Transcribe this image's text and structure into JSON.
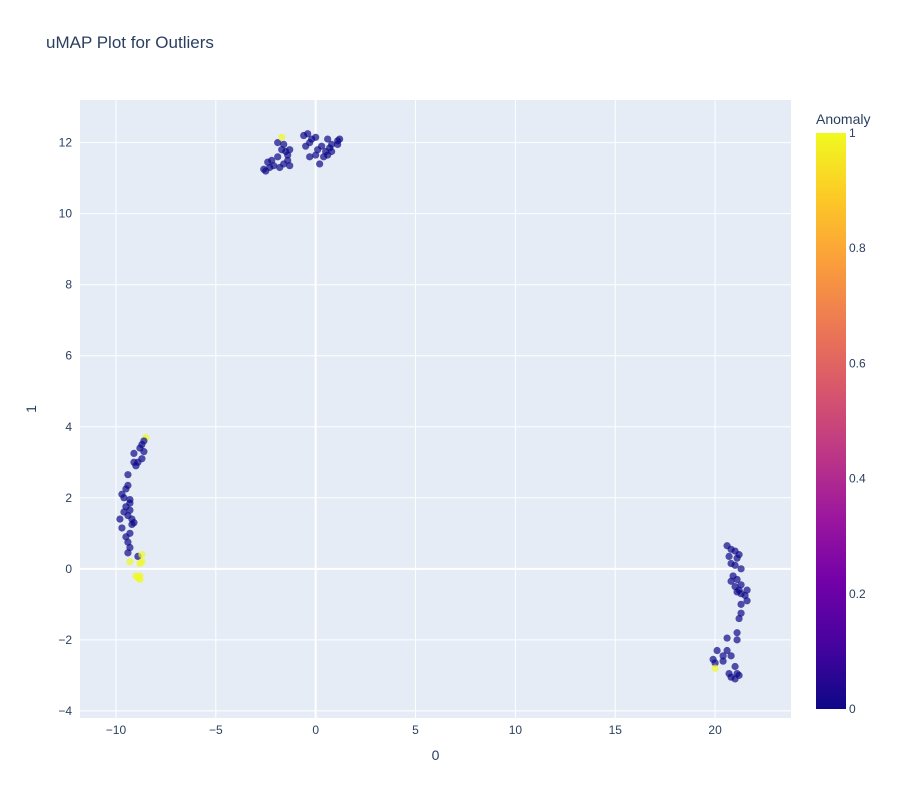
{
  "title": "uMAP Plot for Outliers",
  "colors": {
    "plot_bg": "#e5ecf6",
    "grid": "#ffffff",
    "text": "#2a3f5f",
    "marker_opacity": 0.7
  },
  "chart_data": {
    "type": "scatter",
    "title": "uMAP Plot for Outliers",
    "xlabel": "0",
    "ylabel": "1",
    "xlim": [
      -11.8,
      23.8
    ],
    "ylim": [
      -4.2,
      13.2
    ],
    "x_ticks": [
      -10,
      -5,
      0,
      5,
      10,
      15,
      20
    ],
    "y_ticks": [
      -4,
      -2,
      0,
      2,
      4,
      6,
      8,
      10,
      12
    ],
    "grid": true,
    "colorbar": {
      "title": "Anomaly",
      "range": [
        0,
        1
      ],
      "ticks": [
        0,
        0.2,
        0.4,
        0.6,
        0.8,
        1
      ],
      "colorscale": "plasma"
    },
    "points": [
      {
        "x": -2.5,
        "y": 11.2,
        "c": 0
      },
      {
        "x": -2.6,
        "y": 11.25,
        "c": 0
      },
      {
        "x": -2.3,
        "y": 11.3,
        "c": 0
      },
      {
        "x": -2.4,
        "y": 11.45,
        "c": 0
      },
      {
        "x": -2.1,
        "y": 11.35,
        "c": 0
      },
      {
        "x": -2.2,
        "y": 11.5,
        "c": 0
      },
      {
        "x": -1.9,
        "y": 11.6,
        "c": 0
      },
      {
        "x": -1.8,
        "y": 11.3,
        "c": 0
      },
      {
        "x": -1.6,
        "y": 11.4,
        "c": 0
      },
      {
        "x": -1.4,
        "y": 11.5,
        "c": 0
      },
      {
        "x": -1.3,
        "y": 11.35,
        "c": 0
      },
      {
        "x": -1.4,
        "y": 11.65,
        "c": 0
      },
      {
        "x": -1.7,
        "y": 11.8,
        "c": 0
      },
      {
        "x": -1.9,
        "y": 12.0,
        "c": 0
      },
      {
        "x": -1.6,
        "y": 11.95,
        "c": 0
      },
      {
        "x": -1.5,
        "y": 11.75,
        "c": 0
      },
      {
        "x": -1.3,
        "y": 11.8,
        "c": 0
      },
      {
        "x": -1.7,
        "y": 12.15,
        "c": 1
      },
      {
        "x": -0.6,
        "y": 12.2,
        "c": 0
      },
      {
        "x": -0.4,
        "y": 12.25,
        "c": 0
      },
      {
        "x": -0.2,
        "y": 12.1,
        "c": 0
      },
      {
        "x": 0.0,
        "y": 12.15,
        "c": 0
      },
      {
        "x": -0.5,
        "y": 11.9,
        "c": 0
      },
      {
        "x": -0.3,
        "y": 12.0,
        "c": 0
      },
      {
        "x": 0.1,
        "y": 11.8,
        "c": 0
      },
      {
        "x": 0.3,
        "y": 11.9,
        "c": 0
      },
      {
        "x": 0.5,
        "y": 11.75,
        "c": 0
      },
      {
        "x": 0.7,
        "y": 11.85,
        "c": 0
      },
      {
        "x": 0.6,
        "y": 12.1,
        "c": 0
      },
      {
        "x": 0.8,
        "y": 11.95,
        "c": 0
      },
      {
        "x": 0.4,
        "y": 11.6,
        "c": 0
      },
      {
        "x": 0.2,
        "y": 11.4,
        "c": 0
      },
      {
        "x": 0.6,
        "y": 11.65,
        "c": 0
      },
      {
        "x": 0.0,
        "y": 11.65,
        "c": 0
      },
      {
        "x": -0.3,
        "y": 11.6,
        "c": 0
      },
      {
        "x": 1.1,
        "y": 12.05,
        "c": 0
      },
      {
        "x": 1.2,
        "y": 12.1,
        "c": 0
      },
      {
        "x": 1.1,
        "y": 11.95,
        "c": 0
      },
      {
        "x": 0.8,
        "y": 11.75,
        "c": 0
      },
      {
        "x": -8.5,
        "y": 3.7,
        "c": 1
      },
      {
        "x": -8.6,
        "y": 3.6,
        "c": 0
      },
      {
        "x": -8.7,
        "y": 3.5,
        "c": 0
      },
      {
        "x": -8.6,
        "y": 3.3,
        "c": 0
      },
      {
        "x": -8.7,
        "y": 3.1,
        "c": 0
      },
      {
        "x": -8.9,
        "y": 3.0,
        "c": 0
      },
      {
        "x": -9.0,
        "y": 2.9,
        "c": 0
      },
      {
        "x": -9.1,
        "y": 3.25,
        "c": 0
      },
      {
        "x": -9.1,
        "y": 3.0,
        "c": 0
      },
      {
        "x": -8.8,
        "y": 3.4,
        "c": 0
      },
      {
        "x": -9.4,
        "y": 2.65,
        "c": 0
      },
      {
        "x": -9.4,
        "y": 2.35,
        "c": 0
      },
      {
        "x": -9.5,
        "y": 2.25,
        "c": 0
      },
      {
        "x": -9.7,
        "y": 2.1,
        "c": 0
      },
      {
        "x": -9.6,
        "y": 2.0,
        "c": 0
      },
      {
        "x": -9.3,
        "y": 1.95,
        "c": 0
      },
      {
        "x": -9.3,
        "y": 1.85,
        "c": 0
      },
      {
        "x": -9.5,
        "y": 1.75,
        "c": 0
      },
      {
        "x": -9.6,
        "y": 1.6,
        "c": 0
      },
      {
        "x": -9.3,
        "y": 1.65,
        "c": 0
      },
      {
        "x": -9.4,
        "y": 1.5,
        "c": 0
      },
      {
        "x": -9.2,
        "y": 1.4,
        "c": 0
      },
      {
        "x": -9.2,
        "y": 1.25,
        "c": 0
      },
      {
        "x": -9.1,
        "y": 1.3,
        "c": 0
      },
      {
        "x": -9.8,
        "y": 1.4,
        "c": 0
      },
      {
        "x": -9.7,
        "y": 1.15,
        "c": 0
      },
      {
        "x": -9.3,
        "y": 1.0,
        "c": 0
      },
      {
        "x": -9.5,
        "y": 0.9,
        "c": 0
      },
      {
        "x": -9.4,
        "y": 0.75,
        "c": 0
      },
      {
        "x": -9.3,
        "y": 0.6,
        "c": 0
      },
      {
        "x": -9.4,
        "y": 0.45,
        "c": 0
      },
      {
        "x": -8.9,
        "y": 0.35,
        "c": 0
      },
      {
        "x": -9.3,
        "y": 0.2,
        "c": 1
      },
      {
        "x": -8.7,
        "y": 0.4,
        "c": 1
      },
      {
        "x": -8.7,
        "y": 0.2,
        "c": 1
      },
      {
        "x": -8.8,
        "y": 0.15,
        "c": 1
      },
      {
        "x": -9.0,
        "y": -0.2,
        "c": 1
      },
      {
        "x": -8.9,
        "y": -0.25,
        "c": 1
      },
      {
        "x": -8.8,
        "y": -0.2,
        "c": 1
      },
      {
        "x": -8.8,
        "y": -0.3,
        "c": 1
      },
      {
        "x": 20.6,
        "y": 0.65,
        "c": 0
      },
      {
        "x": 20.8,
        "y": 0.55,
        "c": 0
      },
      {
        "x": 21.0,
        "y": 0.5,
        "c": 0
      },
      {
        "x": 21.2,
        "y": 0.4,
        "c": 0
      },
      {
        "x": 20.7,
        "y": 0.35,
        "c": 0
      },
      {
        "x": 21.1,
        "y": 0.3,
        "c": 0
      },
      {
        "x": 20.8,
        "y": 0.15,
        "c": 0
      },
      {
        "x": 21.0,
        "y": 0.1,
        "c": 0
      },
      {
        "x": 21.3,
        "y": 0.0,
        "c": 0
      },
      {
        "x": 20.9,
        "y": -0.2,
        "c": 0
      },
      {
        "x": 21.1,
        "y": -0.3,
        "c": 0
      },
      {
        "x": 20.8,
        "y": -0.35,
        "c": 0
      },
      {
        "x": 21.3,
        "y": -0.45,
        "c": 0
      },
      {
        "x": 21.0,
        "y": -0.5,
        "c": 0
      },
      {
        "x": 21.2,
        "y": -0.6,
        "c": 0
      },
      {
        "x": 21.6,
        "y": -0.6,
        "c": 0
      },
      {
        "x": 21.1,
        "y": -0.65,
        "c": 0
      },
      {
        "x": 21.3,
        "y": -0.7,
        "c": 0
      },
      {
        "x": 21.5,
        "y": -0.75,
        "c": 0
      },
      {
        "x": 21.6,
        "y": -0.9,
        "c": 0
      },
      {
        "x": 21.3,
        "y": -1.0,
        "c": 0
      },
      {
        "x": 21.3,
        "y": -1.25,
        "c": 0
      },
      {
        "x": 21.2,
        "y": -1.4,
        "c": 0
      },
      {
        "x": 21.1,
        "y": -1.8,
        "c": 0
      },
      {
        "x": 20.6,
        "y": -1.95,
        "c": 0
      },
      {
        "x": 21.1,
        "y": -2.0,
        "c": 0
      },
      {
        "x": 20.6,
        "y": -2.3,
        "c": 0
      },
      {
        "x": 20.1,
        "y": -2.3,
        "c": 0
      },
      {
        "x": 20.4,
        "y": -2.45,
        "c": 0
      },
      {
        "x": 20.8,
        "y": -2.45,
        "c": 0
      },
      {
        "x": 19.9,
        "y": -2.55,
        "c": 0
      },
      {
        "x": 20.4,
        "y": -2.6,
        "c": 0
      },
      {
        "x": 20.0,
        "y": -2.65,
        "c": 0
      },
      {
        "x": 21.0,
        "y": -2.75,
        "c": 0
      },
      {
        "x": 20.0,
        "y": -2.8,
        "c": 1
      },
      {
        "x": 20.7,
        "y": -2.95,
        "c": 0
      },
      {
        "x": 21.1,
        "y": -2.95,
        "c": 0
      },
      {
        "x": 20.8,
        "y": -3.05,
        "c": 0
      },
      {
        "x": 21.0,
        "y": -3.1,
        "c": 0
      },
      {
        "x": 21.2,
        "y": -3.0,
        "c": 0
      }
    ]
  }
}
